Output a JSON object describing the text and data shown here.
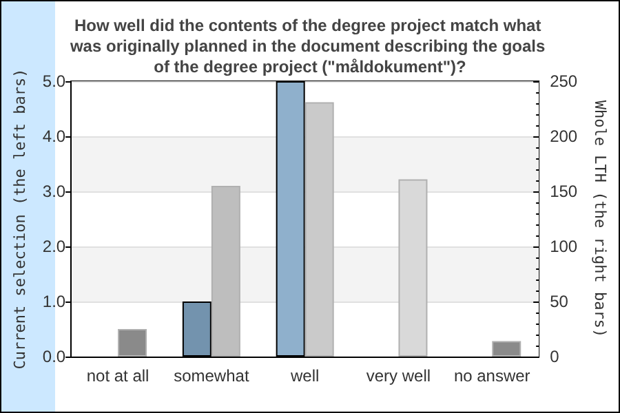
{
  "chart_data": {
    "type": "bar",
    "title": "How well did the contents of the degree project match what was originally planned in the document describing the goals of the degree project (\"måldokument\")?",
    "ylabel": "Current selection (the left bars)",
    "y2label": "Whole LTH (the right bars)",
    "categories": [
      "not at all",
      "somewhat",
      "well",
      "very well",
      "no answer"
    ],
    "series": [
      {
        "colors": [
          "#7393ae",
          "#7393ae",
          "#8fb0cc",
          "#7393ae",
          "#7393ae"
        ],
        "values": [
          0,
          1,
          5,
          0,
          0
        ]
      },
      {
        "axis": "y2",
        "colors": [
          "#8a8a8a",
          "#bebebe",
          "#cacaca",
          "#d9d9d9",
          "#8a8a8a"
        ],
        "values": [
          25,
          155,
          231,
          161,
          14
        ]
      }
    ],
    "ylim": [
      0,
      5
    ],
    "yticks": [
      {
        "value": 0,
        "label": "0.0"
      },
      {
        "value": 1,
        "label": "1.0"
      },
      {
        "value": 2,
        "label": "2.0"
      },
      {
        "value": 3,
        "label": "3.0"
      },
      {
        "value": 4,
        "label": "4.0"
      },
      {
        "value": 5,
        "label": "5.0"
      }
    ],
    "y2lim": [
      0,
      250
    ],
    "y2ticks": [
      0,
      50,
      100,
      150,
      200,
      250
    ],
    "grid": "y"
  }
}
